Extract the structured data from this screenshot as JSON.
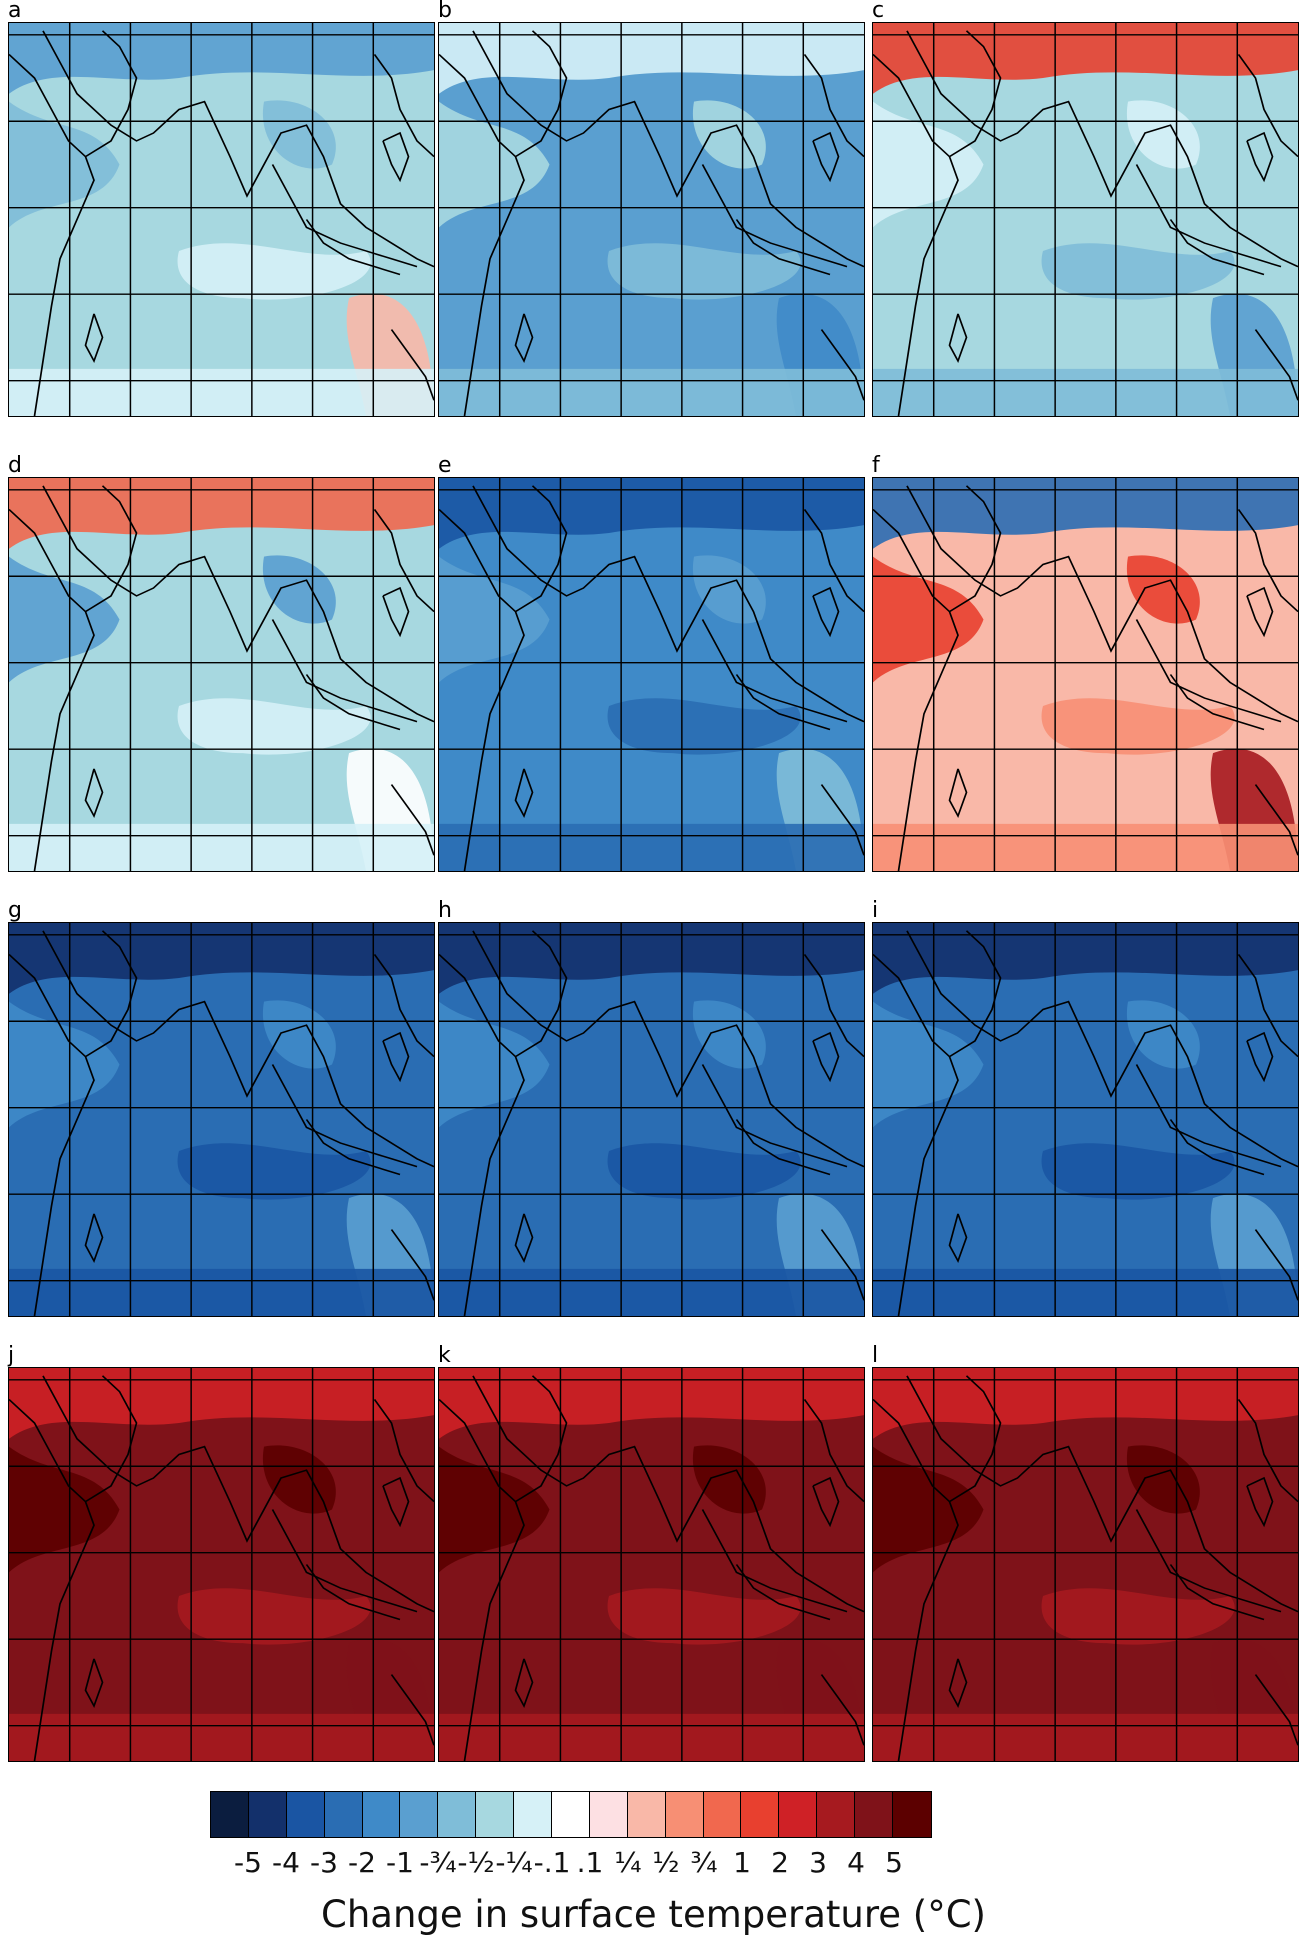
{
  "figure": {
    "panels": [
      {
        "label": "a",
        "pattern": "light"
      },
      {
        "label": "b",
        "pattern": "medium"
      },
      {
        "label": "c",
        "pattern": "redtop"
      },
      {
        "label": "d",
        "pattern": "mixed"
      },
      {
        "label": "e",
        "pattern": "blue"
      },
      {
        "label": "f",
        "pattern": "red"
      },
      {
        "label": "g",
        "pattern": "deepblue"
      },
      {
        "label": "h",
        "pattern": "deepblue"
      },
      {
        "label": "i",
        "pattern": "deepblue"
      },
      {
        "label": "j",
        "pattern": "darkred"
      },
      {
        "label": "k",
        "pattern": "darkred"
      },
      {
        "label": "l",
        "pattern": "darkred"
      }
    ],
    "colorbar": {
      "colors": [
        "#0b1d3f",
        "#13306b",
        "#1a55a3",
        "#2a6db3",
        "#3f8ac8",
        "#5a9fd0",
        "#7fbdd8",
        "#a7d8e0",
        "#d6f1f7",
        "#ffffff",
        "#fde0e3",
        "#f9b8a8",
        "#f78f74",
        "#f1684e",
        "#e8402f",
        "#cf2126",
        "#a61a1f",
        "#7f1219",
        "#5c0000"
      ],
      "ticks": [
        "-5",
        "-4",
        "-3",
        "-2",
        "-1",
        "-¾",
        "-½",
        "-¼",
        "-.1",
        ".1",
        "¼",
        "½",
        "¾",
        "1",
        "2",
        "3",
        "4",
        "5"
      ],
      "title": "Change in surface temperature (°C)"
    }
  }
}
